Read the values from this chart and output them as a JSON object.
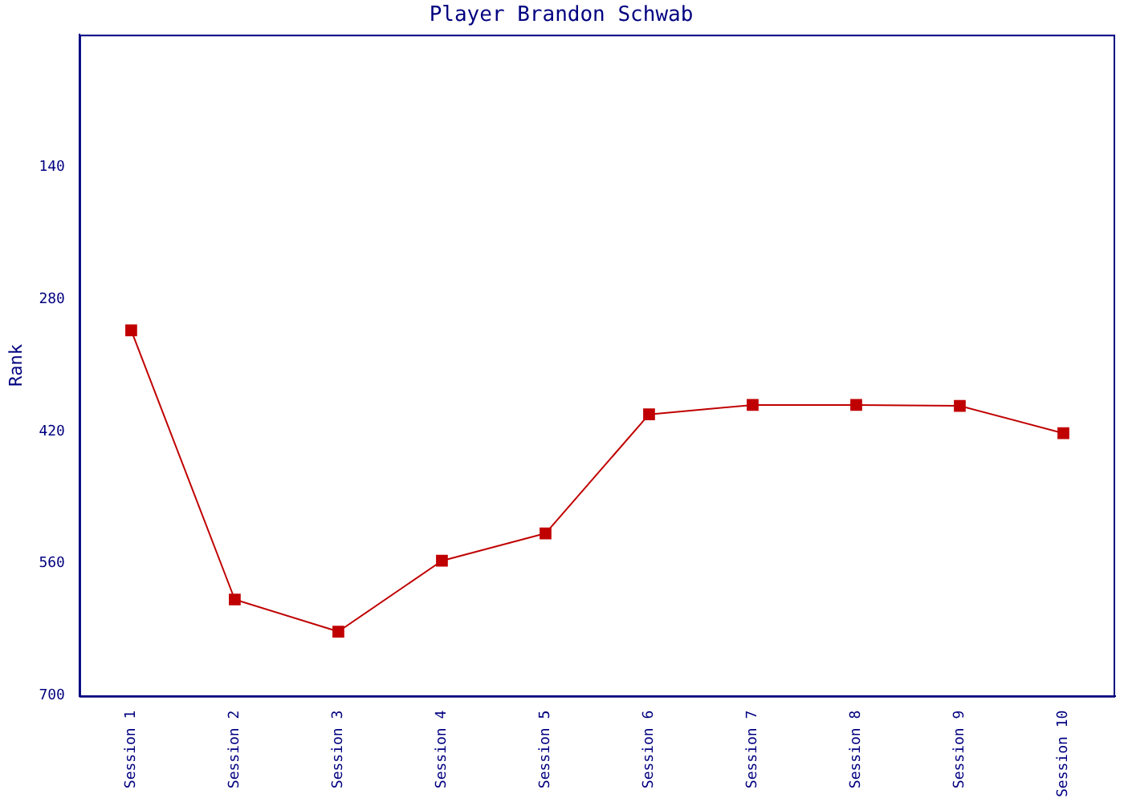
{
  "chart_data": {
    "type": "line",
    "title": "Player Brandon Schwab",
    "ylabel": "Rank",
    "categories": [
      "Session 1",
      "Session 2",
      "Session 3",
      "Session 4",
      "Session 5",
      "Session 6",
      "Session 7",
      "Session 8",
      "Session 9",
      "Session 10"
    ],
    "series": [
      {
        "color": "#c00000",
        "values": [
          313,
          598,
          632,
          557,
          528,
          402,
          392,
          392,
          393,
          422
        ]
      }
    ],
    "ylim": [
      700,
      0
    ],
    "yticks": [
      140,
      280,
      420,
      560,
      700
    ],
    "grid": false,
    "legend": false,
    "marker": "square",
    "line_style": "solid"
  }
}
